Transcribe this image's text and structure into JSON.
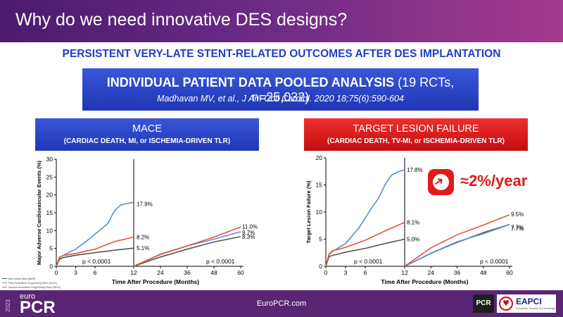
{
  "header": {
    "title": "Why do we need innovative DES designs?"
  },
  "subtitle": "PERSISTENT VERY-LATE STENT-RELATED OUTCOMES AFTER DES IMPLANTATION",
  "ipd_box": {
    "title_bold": "INDIVIDUAL PATIENT DATA POOLED ANALYSIS",
    "title_rest": " (19 RCTs, n=25,032)",
    "citation": "Madhavan MV, et al., J Am Coll Cardiol. 2020 18;75(6):590-604"
  },
  "mace_box": {
    "title": "MACE",
    "subtitle": "(CARDIAC DEATH, MI, or ISCHEMIA-DRIVEN TLR)"
  },
  "tlf_box": {
    "title": "TARGET LESION FAILURE",
    "subtitle": "(CARDIAC DEATH, TV-MI, or ISCHEMIA-DRIVEN TLR)"
  },
  "callout": {
    "text": "≈2%/year",
    "icon": "arrow-up-right-icon"
  },
  "footer": {
    "year": "2023",
    "brand_top": "euro",
    "brand": "PCR",
    "url": "EuroPCR.com",
    "pcr_logo": "PCR",
    "eapci": "EAPCI",
    "eapci_sub": "European Society of Cardiology"
  },
  "colors": {
    "bms": "#555555",
    "first_gen": "#5b8fc9",
    "second_gen": "#e0553a",
    "accent_blue": "#1e3fc4",
    "accent_red": "#e01b1b"
  },
  "chart_data": [
    {
      "type": "line",
      "title": "MACE",
      "xlabel": "Time After Procedure (Months)",
      "ylabel": "Major Adverse Cardiovascular Events (%)",
      "xlim": [
        0,
        60
      ],
      "ylim": [
        0,
        30
      ],
      "xticks": [
        0,
        3,
        6,
        12,
        24,
        36,
        48,
        60
      ],
      "yticks": [
        0,
        5,
        10,
        15,
        20,
        25,
        30
      ],
      "legend_position": "bottom-left",
      "landmark_month": 12,
      "pvalues": [
        "p < 0.0001",
        "p < 0.0001"
      ],
      "series": [
        {
          "name": "Bare-Metal Stent (BMS)",
          "color": "#555555",
          "early": [
            [
              0,
              0
            ],
            [
              0.5,
              2.0
            ],
            [
              1,
              2.4
            ],
            [
              3,
              3.1
            ],
            [
              6,
              3.8
            ],
            [
              9,
              4.5
            ],
            [
              12,
              5.1
            ]
          ],
          "late": [
            [
              12,
              0
            ],
            [
              24,
              2.6
            ],
            [
              36,
              4.8
            ],
            [
              48,
              6.8
            ],
            [
              60,
              8.3
            ]
          ],
          "labels": [
            "5.1%",
            "8.3%"
          ]
        },
        {
          "name": "First-Generation Drug-Eluting Stent (DES1)",
          "color": "#5b8fc9",
          "early": [
            [
              0,
              0
            ],
            [
              0.5,
              2.5
            ],
            [
              1,
              3.0
            ],
            [
              3,
              4.8
            ],
            [
              5,
              7.5
            ],
            [
              7,
              10.5
            ],
            [
              8,
              12.0
            ],
            [
              9,
              15.5
            ],
            [
              10,
              17.2
            ],
            [
              11,
              17.6
            ],
            [
              12,
              17.9
            ]
          ],
          "late": [
            [
              12,
              0
            ],
            [
              24,
              3.4
            ],
            [
              36,
              5.7
            ],
            [
              48,
              7.6
            ],
            [
              60,
              9.7
            ]
          ],
          "labels": [
            "17.9%",
            "9.7%"
          ]
        },
        {
          "name": "Second-Generation Drug-Eluting Stent (DES2)",
          "color": "#e0553a",
          "early": [
            [
              0,
              0
            ],
            [
              0.5,
              2.5
            ],
            [
              1,
              3.0
            ],
            [
              3,
              3.6
            ],
            [
              6,
              4.8
            ],
            [
              9,
              6.9
            ],
            [
              12,
              8.2
            ]
          ],
          "late": [
            [
              12,
              0
            ],
            [
              24,
              3.3
            ],
            [
              36,
              5.7
            ],
            [
              48,
              8.2
            ],
            [
              60,
              11.0
            ]
          ],
          "labels": [
            "8.2%",
            "11.0%"
          ]
        }
      ]
    },
    {
      "type": "line",
      "title": "TARGET LESION FAILURE",
      "xlabel": "Time After Procedure (Months)",
      "ylabel": "Target Lesion Failure (%)",
      "xlim": [
        0,
        60
      ],
      "ylim": [
        0,
        20
      ],
      "xticks": [
        0,
        3,
        6,
        12,
        24,
        36,
        48,
        60
      ],
      "yticks": [
        0,
        5,
        10,
        15,
        20
      ],
      "landmark_month": 12,
      "pvalues": [
        "p < 0.0001",
        "p < 0.0001"
      ],
      "series": [
        {
          "name": "Bare-Metal Stent (BMS)",
          "color": "#555555",
          "early": [
            [
              0,
              0
            ],
            [
              0.5,
              1.8
            ],
            [
              1,
              2.0
            ],
            [
              3,
              2.6
            ],
            [
              6,
              3.3
            ],
            [
              9,
              4.2
            ],
            [
              12,
              5.0
            ]
          ],
          "late": [
            [
              12,
              0
            ],
            [
              24,
              2.4
            ],
            [
              36,
              4.4
            ],
            [
              48,
              6.2
            ],
            [
              60,
              7.7
            ]
          ],
          "labels": [
            "5.0%",
            "7.7%"
          ]
        },
        {
          "name": "First-Generation Drug-Eluting Stent (DES1)",
          "color": "#5b8fc9",
          "early": [
            [
              0,
              0
            ],
            [
              0.5,
              2.2
            ],
            [
              1,
              2.7
            ],
            [
              3,
              4.2
            ],
            [
              5,
              7.0
            ],
            [
              7,
              10.8
            ],
            [
              8,
              12.5
            ],
            [
              9,
              15.0
            ],
            [
              10,
              16.8
            ],
            [
              11,
              17.4
            ],
            [
              12,
              17.8
            ]
          ],
          "late": [
            [
              12,
              0
            ],
            [
              24,
              2.4
            ],
            [
              36,
              4.5
            ],
            [
              48,
              6.0
            ],
            [
              60,
              7.7
            ]
          ],
          "labels": [
            "17.8%",
            "7.7%"
          ]
        },
        {
          "name": "Second-Generation Drug-Eluting Stent (DES2)",
          "color": "#e0553a",
          "early": [
            [
              0,
              0
            ],
            [
              0.5,
              2.3
            ],
            [
              1,
              2.8
            ],
            [
              3,
              3.5
            ],
            [
              6,
              4.8
            ],
            [
              9,
              6.5
            ],
            [
              12,
              8.1
            ]
          ],
          "late": [
            [
              12,
              0
            ],
            [
              24,
              3.4
            ],
            [
              36,
              5.8
            ],
            [
              48,
              7.6
            ],
            [
              60,
              9.5
            ]
          ],
          "labels": [
            "8.1%",
            "9.5%"
          ]
        }
      ]
    }
  ]
}
